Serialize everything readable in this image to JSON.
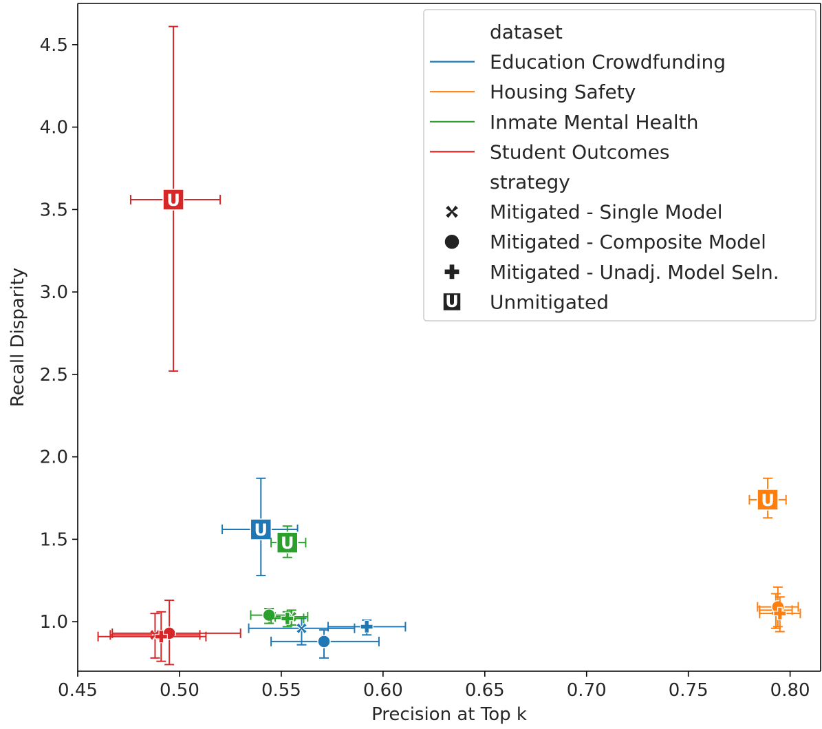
{
  "chart_data": {
    "type": "scatter",
    "title": "",
    "xlabel": "Precision at Top k",
    "ylabel": "Recall Disparity",
    "xlim": [
      0.45,
      0.815
    ],
    "ylim": [
      0.7,
      4.75
    ],
    "xticks": [
      0.45,
      0.5,
      0.55,
      0.6,
      0.65,
      0.7,
      0.75,
      0.8
    ],
    "xtick_labels": [
      "0.45",
      "0.50",
      "0.55",
      "0.60",
      "0.65",
      "0.70",
      "0.75",
      "0.80"
    ],
    "yticks": [
      1.0,
      1.5,
      2.0,
      2.5,
      3.0,
      3.5,
      4.0,
      4.5
    ],
    "ytick_labels": [
      "1.0",
      "1.5",
      "2.0",
      "2.5",
      "3.0",
      "3.5",
      "4.0",
      "4.5"
    ],
    "grid": false,
    "legend_position": "top-right",
    "legend": {
      "dataset_header": "dataset",
      "strategy_header": "strategy",
      "unmitigated_glyph": "U"
    },
    "datasets": [
      {
        "name": "Education Crowdfunding",
        "color": "#1f77b4"
      },
      {
        "name": "Housing Safety",
        "color": "#ff7f0e"
      },
      {
        "name": "Inmate Mental Health",
        "color": "#2ca02c"
      },
      {
        "name": "Student Outcomes",
        "color": "#d62728"
      }
    ],
    "strategies": [
      {
        "name": "Mitigated - Single Model",
        "marker": "x"
      },
      {
        "name": "Mitigated - Composite Model",
        "marker": "circle"
      },
      {
        "name": "Mitigated - Unadj. Model Seln.",
        "marker": "plus"
      },
      {
        "name": "Unmitigated",
        "marker": "U"
      }
    ],
    "points": [
      {
        "dataset": "Education Crowdfunding",
        "strategy": "Mitigated - Single Model",
        "x": 0.56,
        "y": 0.96,
        "xerr": [
          0.534,
          0.586
        ],
        "yerr": [
          0.86,
          1.02
        ]
      },
      {
        "dataset": "Education Crowdfunding",
        "strategy": "Mitigated - Composite Model",
        "x": 0.571,
        "y": 0.88,
        "xerr": [
          0.545,
          0.598
        ],
        "yerr": [
          0.78,
          0.95
        ]
      },
      {
        "dataset": "Education Crowdfunding",
        "strategy": "Mitigated - Unadj. Model Seln.",
        "x": 0.592,
        "y": 0.97,
        "xerr": [
          0.573,
          0.611
        ],
        "yerr": [
          0.92,
          1.01
        ]
      },
      {
        "dataset": "Education Crowdfunding",
        "strategy": "Unmitigated",
        "x": 0.54,
        "y": 1.56,
        "xerr": [
          0.521,
          0.558
        ],
        "yerr": [
          1.28,
          1.87
        ]
      },
      {
        "dataset": "Housing Safety",
        "strategy": "Mitigated - Single Model",
        "x": 0.793,
        "y": 1.07,
        "xerr": [
          0.785,
          0.801
        ],
        "yerr": [
          0.96,
          1.17
        ]
      },
      {
        "dataset": "Housing Safety",
        "strategy": "Mitigated - Composite Model",
        "x": 0.794,
        "y": 1.09,
        "xerr": [
          0.784,
          0.804
        ],
        "yerr": [
          0.97,
          1.21
        ]
      },
      {
        "dataset": "Housing Safety",
        "strategy": "Mitigated - Unadj. Model Seln.",
        "x": 0.795,
        "y": 1.05,
        "xerr": [
          0.785,
          0.805
        ],
        "yerr": [
          0.94,
          1.15
        ]
      },
      {
        "dataset": "Housing Safety",
        "strategy": "Unmitigated",
        "x": 0.789,
        "y": 1.74,
        "xerr": [
          0.78,
          0.798
        ],
        "yerr": [
          1.63,
          1.87
        ]
      },
      {
        "dataset": "Inmate Mental Health",
        "strategy": "Mitigated - Single Model",
        "x": 0.555,
        "y": 1.03,
        "xerr": [
          0.547,
          0.563
        ],
        "yerr": [
          0.98,
          1.07
        ]
      },
      {
        "dataset": "Inmate Mental Health",
        "strategy": "Mitigated - Composite Model",
        "x": 0.544,
        "y": 1.04,
        "xerr": [
          0.535,
          0.553
        ],
        "yerr": [
          0.99,
          1.08
        ]
      },
      {
        "dataset": "Inmate Mental Health",
        "strategy": "Mitigated - Unadj. Model Seln.",
        "x": 0.553,
        "y": 1.02,
        "xerr": [
          0.545,
          0.561
        ],
        "yerr": [
          0.97,
          1.06
        ]
      },
      {
        "dataset": "Inmate Mental Health",
        "strategy": "Unmitigated",
        "x": 0.553,
        "y": 1.48,
        "xerr": [
          0.545,
          0.562
        ],
        "yerr": [
          1.39,
          1.58
        ]
      },
      {
        "dataset": "Student Outcomes",
        "strategy": "Mitigated - Single Model",
        "x": 0.488,
        "y": 0.92,
        "xerr": [
          0.466,
          0.51
        ],
        "yerr": [
          0.78,
          1.05
        ]
      },
      {
        "dataset": "Student Outcomes",
        "strategy": "Mitigated - Composite Model",
        "x": 0.495,
        "y": 0.93,
        "xerr": [
          0.467,
          0.53
        ],
        "yerr": [
          0.74,
          1.13
        ]
      },
      {
        "dataset": "Student Outcomes",
        "strategy": "Mitigated - Unadj. Model Seln.",
        "x": 0.491,
        "y": 0.91,
        "xerr": [
          0.46,
          0.513
        ],
        "yerr": [
          0.76,
          1.06
        ]
      },
      {
        "dataset": "Student Outcomes",
        "strategy": "Unmitigated",
        "x": 0.497,
        "y": 3.56,
        "xerr": [
          0.476,
          0.52
        ],
        "yerr": [
          2.52,
          4.61
        ]
      }
    ]
  }
}
